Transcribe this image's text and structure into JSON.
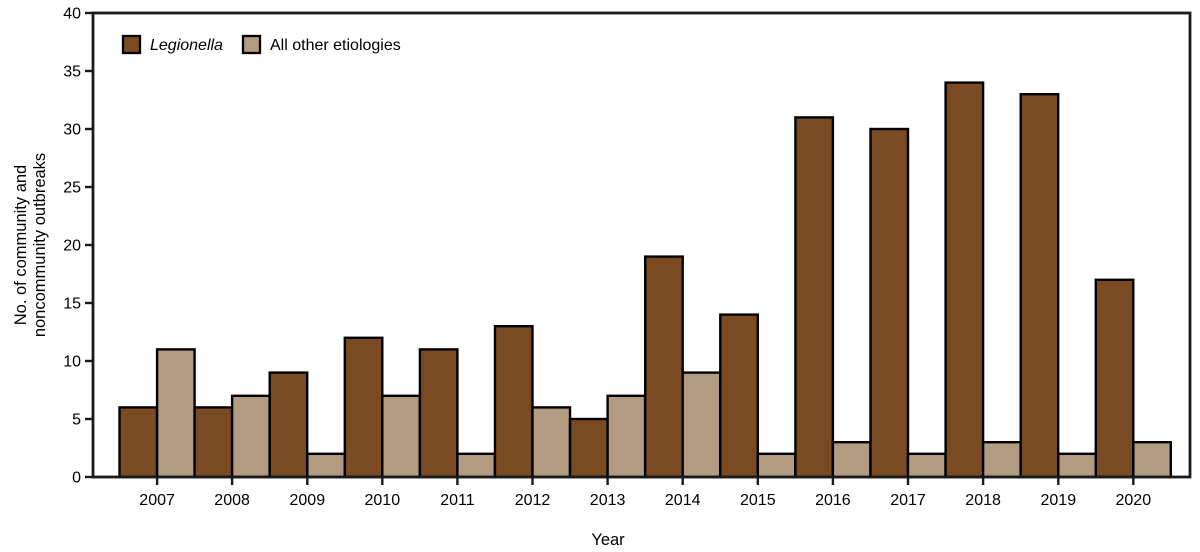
{
  "figure": {
    "y_axis_title_lines": [
      "No. of community and",
      "noncommunity outbreaks"
    ],
    "x_axis_title": "Year",
    "background_color": "#ffffff",
    "axis_color": "#1a1a1a",
    "text_color": "#000000"
  },
  "legend": {
    "items": [
      {
        "label": "Legionella",
        "italic": true,
        "swatch_color": "#7A4B23"
      },
      {
        "label": "All other etiologies",
        "italic": false,
        "swatch_color": "#B29B80"
      }
    ]
  },
  "chart_data": {
    "type": "bar",
    "title": "",
    "categories": [
      "2007",
      "2008",
      "2009",
      "2010",
      "2011",
      "2012",
      "2013",
      "2014",
      "2015",
      "2016",
      "2017",
      "2018",
      "2019",
      "2020"
    ],
    "series": [
      {
        "name": "Legionella",
        "color": "#7A4B23",
        "values": [
          6,
          6,
          9,
          12,
          11,
          13,
          5,
          19,
          14,
          31,
          30,
          34,
          33,
          17
        ]
      },
      {
        "name": "All other etiologies",
        "color": "#B29B80",
        "values": [
          11,
          7,
          2,
          7,
          2,
          6,
          7,
          9,
          2,
          3,
          2,
          3,
          2,
          3
        ]
      }
    ],
    "xlabel": "Year",
    "ylabel": "No. of community and noncommunity outbreaks",
    "ylim": [
      0,
      40
    ],
    "yticks": [
      0,
      5,
      10,
      15,
      20,
      25,
      30,
      35,
      40
    ],
    "grid": false,
    "legend_position": "top-left",
    "bar_outline_color": "#000000"
  }
}
